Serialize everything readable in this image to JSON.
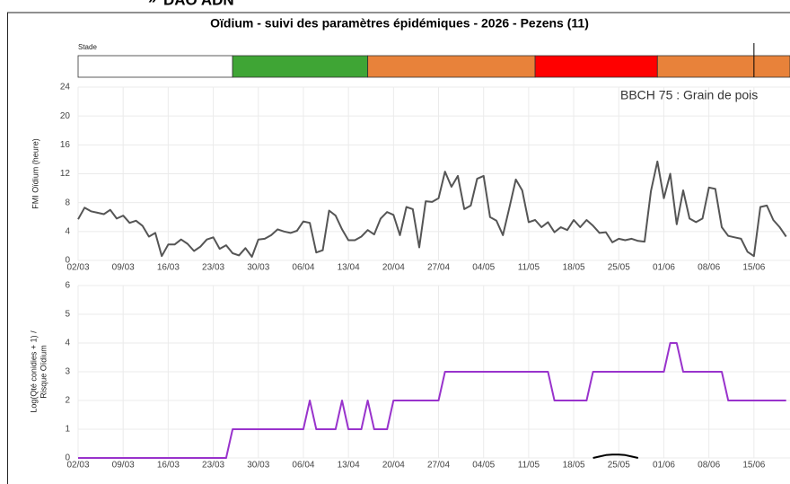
{
  "header": {
    "title": "DAO ADN",
    "page_title": "Oïdium - suivi des paramètres épidémiques - 2026 - Pezens (11)"
  },
  "chart_data": [
    {
      "type": "timeline",
      "label": "Stade",
      "xlim": [
        0,
        110.6
      ],
      "marker": 105,
      "segments": [
        {
          "start": 0,
          "end": 24,
          "color": "#ffffff"
        },
        {
          "start": 24,
          "end": 45,
          "color": "#3fa535"
        },
        {
          "start": 45,
          "end": 71,
          "color": "#e8823a"
        },
        {
          "start": 71,
          "end": 90,
          "color": "#ff0000"
        },
        {
          "start": 90,
          "end": 110.6,
          "color": "#e8823a"
        }
      ]
    },
    {
      "type": "line",
      "y_label": "FMI Oïdium (heure)",
      "annotation": "BBCH 75 : Grain de pois",
      "xlim": [
        0,
        110.6
      ],
      "ylim": [
        0,
        24
      ],
      "yticks": [
        0,
        4,
        8,
        12,
        16,
        20,
        24
      ],
      "grid": true,
      "categories": [
        "02/03",
        null,
        null,
        null,
        null,
        null,
        null,
        "09/03",
        null,
        null,
        null,
        null,
        null,
        null,
        "16/03",
        null,
        null,
        null,
        null,
        null,
        null,
        "23/03",
        null,
        null,
        null,
        null,
        null,
        null,
        "30/03",
        null,
        null,
        null,
        null,
        null,
        null,
        "06/04",
        null,
        null,
        null,
        null,
        null,
        null,
        "13/04",
        null,
        null,
        null,
        null,
        null,
        null,
        "20/04",
        null,
        null,
        null,
        null,
        null,
        null,
        "27/04",
        null,
        null,
        null,
        null,
        null,
        null,
        "04/05",
        null,
        null,
        null,
        null,
        null,
        null,
        "11/05",
        null,
        null,
        null,
        null,
        null,
        null,
        "18/05",
        null,
        null,
        null,
        null,
        null,
        null,
        "25/05",
        null,
        null,
        null,
        null,
        null,
        null,
        "01/06",
        null,
        null,
        null,
        null,
        null,
        null,
        "08/06",
        null,
        null,
        null,
        null,
        null,
        null,
        "15/06",
        null,
        null,
        null,
        null,
        null
      ],
      "series": [
        {
          "color": "#555555",
          "values": [
            5.7,
            7.3,
            6.8,
            6.6,
            6.4,
            7.0,
            5.8,
            6.2,
            5.2,
            5.5,
            4.8,
            3.3,
            3.8,
            0.6,
            2.2,
            2.2,
            2.9,
            2.3,
            1.3,
            1.9,
            2.9,
            3.2,
            1.6,
            2.1,
            1.0,
            0.7,
            1.7,
            0.5,
            2.9,
            3.0,
            3.5,
            4.3,
            4.0,
            3.8,
            4.1,
            5.4,
            5.2,
            1.1,
            1.4,
            6.9,
            6.2,
            4.3,
            2.8,
            2.8,
            3.3,
            4.2,
            3.6,
            5.8,
            6.7,
            6.3,
            3.5,
            7.4,
            7.1,
            1.8,
            8.2,
            8.1,
            8.6,
            12.3,
            10.2,
            11.7,
            7.1,
            7.6,
            11.3,
            11.7,
            6.0,
            5.5,
            3.5,
            7.3,
            11.2,
            9.7,
            5.3,
            5.6,
            4.6,
            5.3,
            3.9,
            4.6,
            4.2,
            5.6,
            4.6,
            5.6,
            4.8,
            3.8,
            3.9,
            2.5,
            3.0,
            2.8,
            3.0,
            2.7,
            2.6,
            9.6,
            13.7,
            8.6,
            12.0,
            5.0,
            9.7,
            5.8,
            5.3,
            5.8,
            10.1,
            9.9,
            4.6,
            3.4,
            3.2,
            3.0,
            1.2,
            0.6,
            7.4,
            7.6,
            5.6,
            4.6,
            3.3
          ]
        }
      ]
    },
    {
      "type": "line",
      "y_label": [
        "Log(Qté conidies + 1) /",
        "Risque Oïdium"
      ],
      "xlim": [
        0,
        110.6
      ],
      "ylim": [
        0,
        6
      ],
      "yticks": [
        0,
        1,
        2,
        3,
        4,
        5,
        6
      ],
      "grid": true,
      "categories": [
        "02/03",
        null,
        null,
        null,
        null,
        null,
        null,
        "09/03",
        null,
        null,
        null,
        null,
        null,
        null,
        "16/03",
        null,
        null,
        null,
        null,
        null,
        null,
        "23/03",
        null,
        null,
        null,
        null,
        null,
        null,
        "30/03",
        null,
        null,
        null,
        null,
        null,
        null,
        "06/04",
        null,
        null,
        null,
        null,
        null,
        null,
        "13/04",
        null,
        null,
        null,
        null,
        null,
        null,
        "20/04",
        null,
        null,
        null,
        null,
        null,
        null,
        "27/04",
        null,
        null,
        null,
        null,
        null,
        null,
        "04/05",
        null,
        null,
        null,
        null,
        null,
        null,
        "11/05",
        null,
        null,
        null,
        null,
        null,
        null,
        "18/05",
        null,
        null,
        null,
        null,
        null,
        null,
        "25/05",
        null,
        null,
        null,
        null,
        null,
        null,
        "01/06",
        null,
        null,
        null,
        null,
        null,
        null,
        "08/06",
        null,
        null,
        null,
        null,
        null,
        null,
        "15/06",
        null,
        null,
        null,
        null,
        null
      ],
      "series": [
        {
          "color": "#9933cc",
          "values": [
            0,
            0,
            0,
            0,
            0,
            0,
            0,
            0,
            0,
            0,
            0,
            0,
            0,
            0,
            0,
            0,
            0,
            0,
            0,
            0,
            0,
            0,
            0,
            0,
            1,
            1,
            1,
            1,
            1,
            1,
            1,
            1,
            1,
            1,
            1,
            1,
            2,
            1,
            1,
            1,
            1,
            2,
            1,
            1,
            1,
            2,
            1,
            1,
            1,
            2,
            2,
            2,
            2,
            2,
            2,
            2,
            2,
            3,
            3,
            3,
            3,
            3,
            3,
            3,
            3,
            3,
            3,
            3,
            3,
            3,
            3,
            3,
            3,
            3,
            2,
            2,
            2,
            2,
            2,
            2,
            3,
            3,
            3,
            3,
            3,
            3,
            3,
            3,
            3,
            3,
            3,
            3,
            4,
            4,
            3,
            3,
            3,
            3,
            3,
            3,
            3,
            2,
            2,
            2,
            2,
            2,
            2,
            2,
            2,
            2,
            2
          ]
        },
        {
          "color": "#000000",
          "values": [
            null,
            null,
            null,
            null,
            null,
            null,
            null,
            null,
            null,
            null,
            null,
            null,
            null,
            null,
            null,
            null,
            null,
            null,
            null,
            null,
            null,
            null,
            null,
            null,
            null,
            null,
            null,
            null,
            null,
            null,
            null,
            null,
            null,
            null,
            null,
            null,
            null,
            null,
            null,
            null,
            null,
            null,
            null,
            null,
            null,
            null,
            null,
            null,
            null,
            null,
            null,
            null,
            null,
            null,
            null,
            null,
            null,
            null,
            null,
            null,
            null,
            null,
            null,
            null,
            null,
            null,
            null,
            null,
            null,
            null,
            null,
            null,
            null,
            null,
            null,
            null,
            null,
            null,
            null,
            null,
            0,
            0.05,
            0.1,
            0.12,
            0.12,
            0.1,
            0.05,
            0,
            null,
            null,
            null,
            null,
            null,
            null,
            null,
            null,
            null,
            null,
            null,
            null,
            null,
            null,
            null,
            null,
            null,
            null,
            null,
            null,
            null,
            null,
            null
          ]
        }
      ]
    }
  ]
}
